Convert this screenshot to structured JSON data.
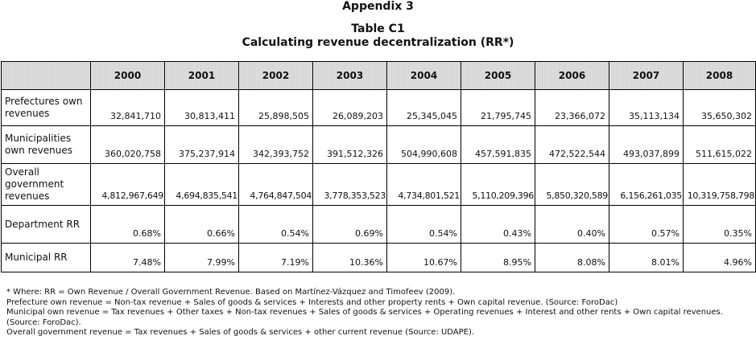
{
  "heading": {
    "appendix": "Appendix 3",
    "table_title": "Table C1",
    "table_subtitle": "Calculating revenue decentralization (RR*)"
  },
  "table": {
    "columns": [
      "",
      "2000",
      "2001",
      "2002",
      "2003",
      "2004",
      "2005",
      "2006",
      "2007",
      "2008"
    ],
    "rows": [
      {
        "label": "Prefectures own revenues",
        "values": [
          "32,841,710",
          "30,813,411",
          "25,898,505",
          "26,089,203",
          "25,345,045",
          "21,795,745",
          "23,366,072",
          "35,113,134",
          "35,650,302"
        ]
      },
      {
        "label": "Municipalities own revenues",
        "values": [
          "360,020,758",
          "375,237,914",
          "342,393,752",
          "391,512,326",
          "504,990,608",
          "457,591,835",
          "472,522,544",
          "493,037,899",
          "511,615,022"
        ]
      },
      {
        "label": "Overall government revenues",
        "values": [
          "4,812,967,649",
          "4,694,835,541",
          "4,764,847,504",
          "3,778,353,523",
          "4,734,801,521",
          "5,110,209,396",
          "5,850,320,589",
          "6,156,261,035",
          "10,319,758,798"
        ]
      },
      {
        "label": "Department RR",
        "values": [
          "0.68%",
          "0.66%",
          "0.54%",
          "0.69%",
          "0.54%",
          "0.43%",
          "0.40%",
          "0.57%",
          "0.35%"
        ]
      },
      {
        "label": "Municipal RR",
        "values": [
          "7.48%",
          "7.99%",
          "7.19%",
          "10.36%",
          "10.67%",
          "8.95%",
          "8.08%",
          "8.01%",
          "4.96%"
        ]
      }
    ]
  },
  "notes": [
    "* Where: RR = Own Revenue / Overall Government Revenue. Based on Martínez-Vázquez and Timofeev (2009).",
    "Prefecture own revenue = Non-tax revenue + Sales of goods & services + Interests and other property rents + Own capital revenue. (Source: ForoDac)",
    "Municipal own revenue = Tax revenues + Other taxes + Non-tax revenues + Sales of goods & services + Operating revenues + Interest and other rents + Own capital revenues. (Source: ForoDac).",
    "Overall government revenue = Tax revenues + Sales of goods & services + other current revenue (Source: UDAPE)."
  ]
}
